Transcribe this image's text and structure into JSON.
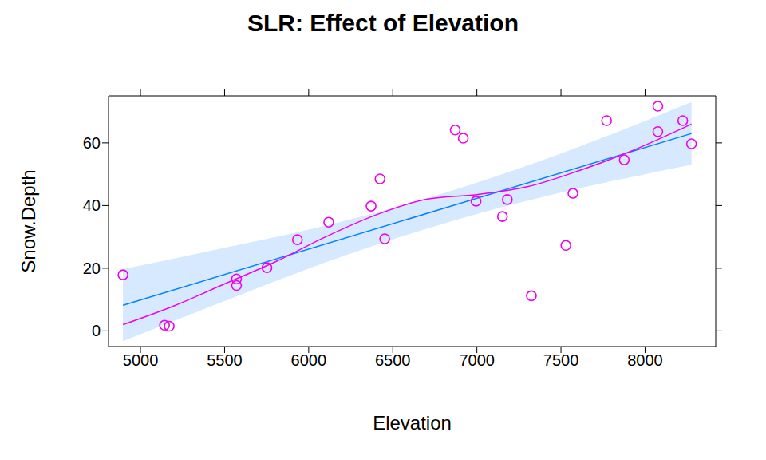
{
  "chart_data": {
    "type": "scatter",
    "title": "SLR: Effect of Elevation",
    "x_label": "Elevation",
    "y_label": "Snow.Depth",
    "xlim": [
      4810,
      8420
    ],
    "ylim": [
      -5,
      75
    ],
    "xticks": [
      5000,
      5500,
      6000,
      6500,
      7000,
      7500,
      8000
    ],
    "yticks": [
      0,
      20,
      40,
      60
    ],
    "series": [
      {
        "type": "band",
        "color": "#d6e9ff",
        "x": [
          4896,
          5500,
          6000,
          6500,
          7000,
          7500,
          8000,
          8276
        ],
        "lower": [
          -3.3,
          9.5,
          19.9,
          29.2,
          37.3,
          44.2,
          50,
          53
        ],
        "upper": [
          19.7,
          26.5,
          32.3,
          39.2,
          47.3,
          56.6,
          67,
          73
        ]
      },
      {
        "type": "line",
        "line_style": "solid",
        "color": "#0080ff",
        "x": [
          4896,
          8276
        ],
        "values": [
          8.2,
          63
        ]
      },
      {
        "type": "line",
        "line_style": "solid",
        "color": "#ee00ee",
        "x": [
          4896,
          5200,
          5500,
          5800,
          6100,
          6400,
          6700,
          7000,
          7300,
          7600,
          7900,
          8276
        ],
        "values": [
          2,
          8,
          15,
          22,
          30,
          37,
          42,
          43.5,
          46,
          51,
          57,
          66
        ]
      },
      {
        "type": "scatter",
        "marker": "circle",
        "color": "#ee00ee",
        "x": [
          4896,
          5143,
          5171,
          5571,
          5571,
          5752,
          5933,
          6119,
          6371,
          6424,
          6452,
          6871,
          6919,
          6995,
          7152,
          7181,
          7324,
          7529,
          7571,
          7771,
          7876,
          8076,
          8076,
          8224,
          8276
        ],
        "values": [
          17.9,
          1.8,
          1.5,
          16.6,
          14.5,
          20.2,
          29.1,
          34.7,
          39.8,
          48.5,
          29.4,
          64.1,
          61.5,
          41.4,
          36.5,
          41.9,
          11.2,
          27.3,
          43.9,
          67.1,
          54.6,
          71.7,
          63.6,
          67.1,
          59.7
        ]
      }
    ]
  }
}
